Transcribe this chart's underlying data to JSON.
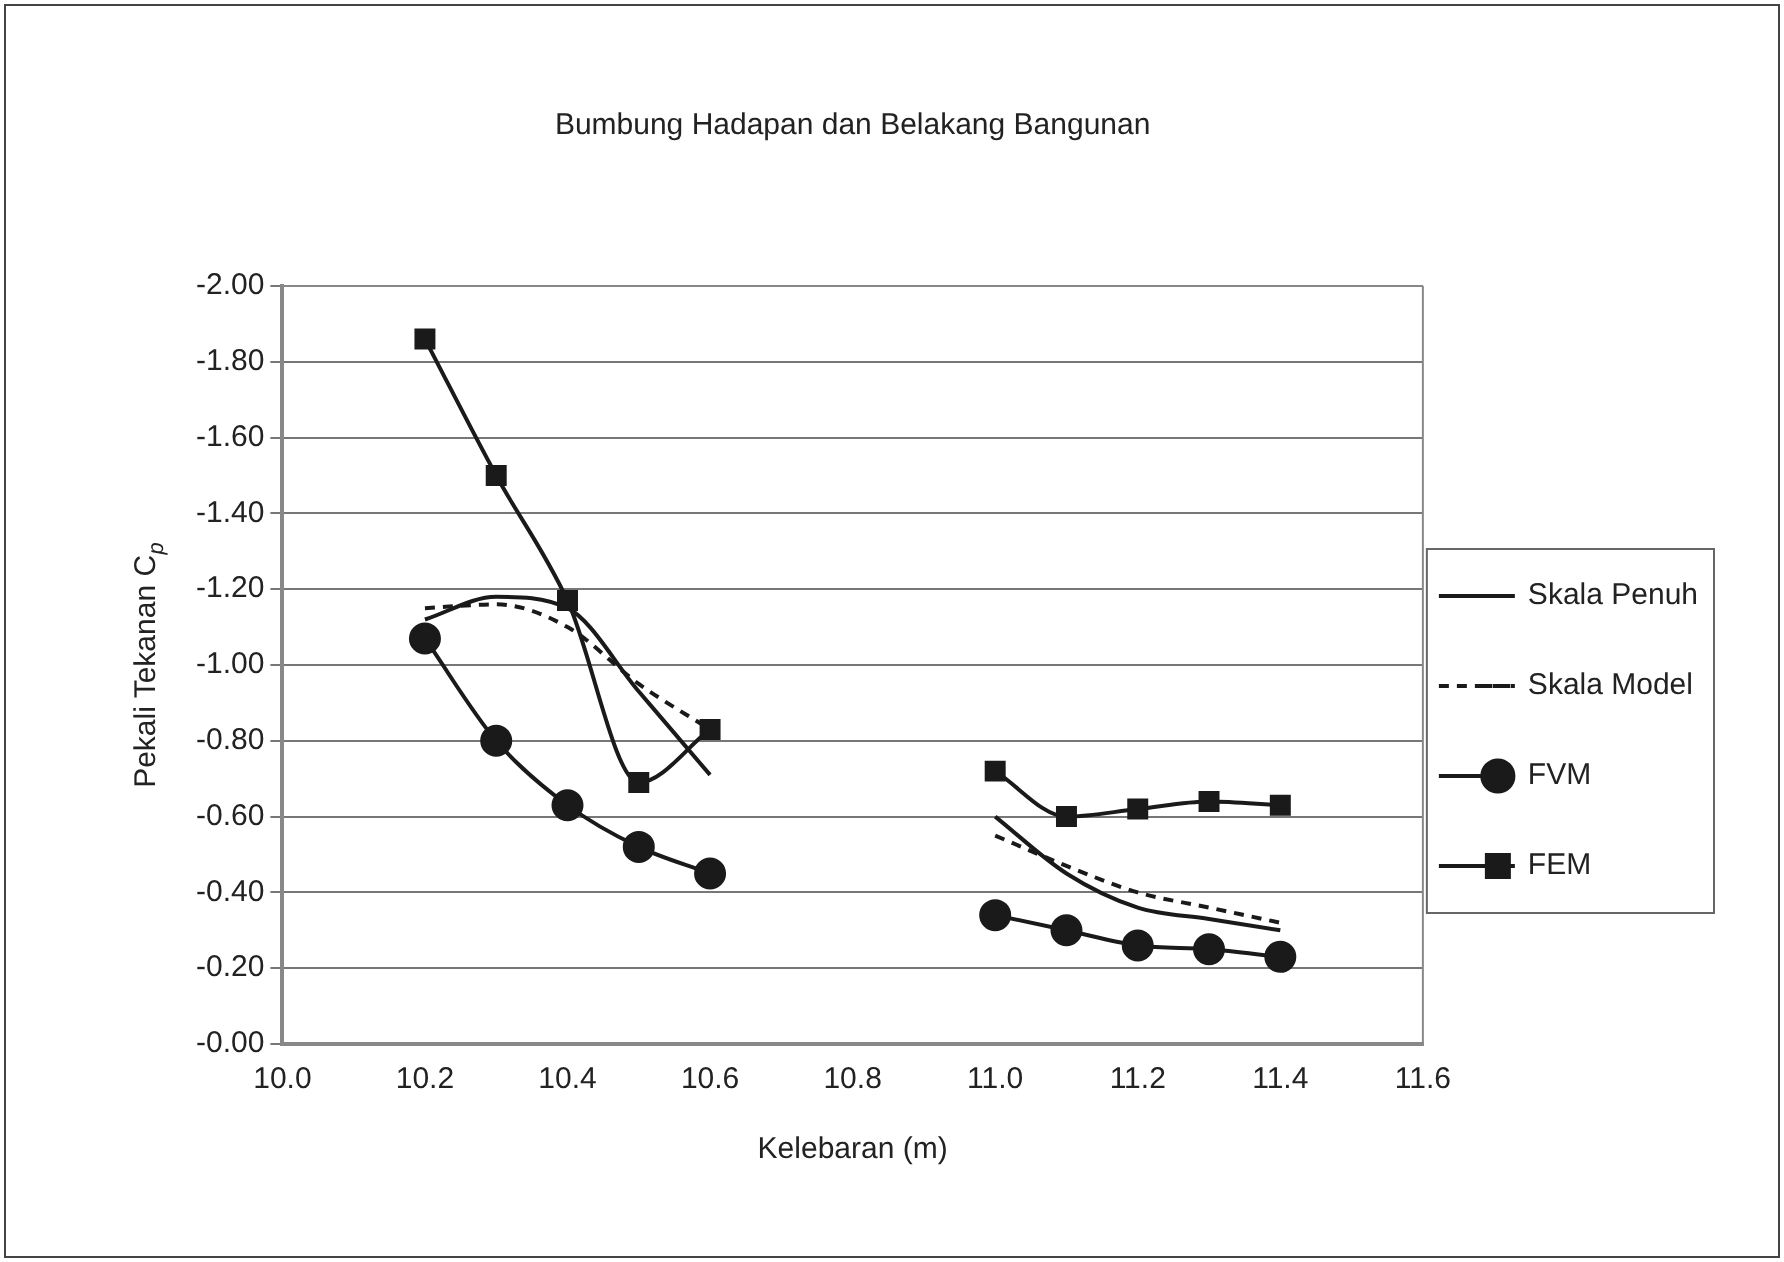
{
  "chart_data": {
    "type": "line",
    "title": "Bumbung Hadapan dan Belakang Bangunan",
    "xlabel": "Kelebaran (m)",
    "ylabel": "Pekali Tekanan C$_{p}$",
    "x": [
      10.2,
      10.3,
      10.4,
      10.5,
      10.6,
      10.8,
      11.0,
      11.1,
      11.2,
      11.3,
      11.4
    ],
    "series": [
      {
        "name": "Skala Penuh",
        "color": "#1a1a1a",
        "marker": "none",
        "line_style": "solid",
        "values": [
          -1.12,
          -1.18,
          -1.15,
          -0.93,
          -0.71,
          null,
          -0.6,
          -0.45,
          -0.36,
          -0.33,
          -0.3
        ]
      },
      {
        "name": "Skala Model",
        "color": "#1a1a1a",
        "marker": "none",
        "line_style": "dashed",
        "values": [
          -1.15,
          -1.16,
          -1.1,
          -0.95,
          -0.83,
          null,
          -0.55,
          -0.47,
          -0.4,
          -0.36,
          -0.32
        ]
      },
      {
        "name": "FVM",
        "color": "#1a1a1a",
        "marker": "circle",
        "line_style": "solid",
        "values": [
          -1.07,
          -0.8,
          -0.63,
          -0.52,
          -0.45,
          null,
          -0.34,
          -0.3,
          -0.26,
          -0.25,
          -0.23
        ]
      },
      {
        "name": "FEM",
        "color": "#1a1a1a",
        "marker": "square",
        "line_style": "solid",
        "values": [
          -1.86,
          -1.5,
          -1.17,
          -0.69,
          -0.83,
          null,
          -0.72,
          -0.6,
          -0.62,
          -0.64,
          -0.63
        ]
      }
    ],
    "xlim": [
      10,
      11.6
    ],
    "xticks": [
      {
        "value": 10,
        "label": "10.0"
      },
      {
        "value": 10.2,
        "label": "10.2"
      },
      {
        "value": 10.4,
        "label": "10.4"
      },
      {
        "value": 10.6,
        "label": "10.6"
      },
      {
        "value": 10.8,
        "label": "10.8"
      },
      {
        "value": 11,
        "label": "11.0"
      },
      {
        "value": 11.2,
        "label": "11.2"
      },
      {
        "value": 11.4,
        "label": "11.4"
      },
      {
        "value": 11.6,
        "label": "11.6"
      }
    ],
    "ylim": [
      0,
      -2
    ],
    "yticks": [
      {
        "value": 0,
        "label": "-0.00"
      },
      {
        "value": -0.2,
        "label": "-0.20"
      },
      {
        "value": -0.4,
        "label": "-0.40"
      },
      {
        "value": -0.6,
        "label": "-0.60"
      },
      {
        "value": -0.8,
        "label": "-0.80"
      },
      {
        "value": -1,
        "label": "-1.00"
      },
      {
        "value": -1.2,
        "label": "-1.20"
      },
      {
        "value": -1.4,
        "label": "-1.40"
      },
      {
        "value": -1.6,
        "label": "-1.60"
      },
      {
        "value": -1.8,
        "label": "-1.80"
      },
      {
        "value": -2,
        "label": "-2.00"
      }
    ],
    "grid": "y",
    "legend": "right"
  }
}
